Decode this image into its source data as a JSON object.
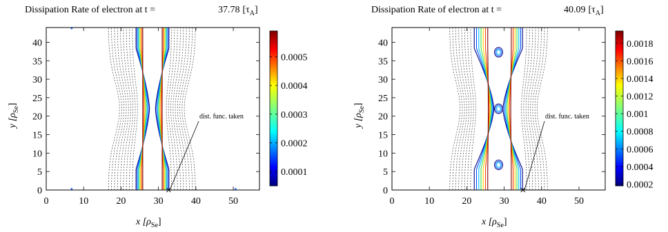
{
  "chart_data": [
    {
      "type": "heatmap",
      "title": "Dissipation Rate of electron at t =",
      "time": "37.78",
      "time_unit": "[τ",
      "time_unit_sub": "A",
      "xlabel": "x [ρ",
      "xlabel_sub": "Se",
      "ylabel": "y [ρ",
      "ylabel_sub": "Se",
      "xlim": [
        0,
        57
      ],
      "ylim": [
        0,
        44
      ],
      "xticks": [
        0,
        10,
        20,
        30,
        40,
        50
      ],
      "yticks": [
        0,
        5,
        10,
        15,
        20,
        25,
        30,
        35,
        40
      ],
      "annotation": "dist. func. taken",
      "marker": [
        32.7,
        0
      ],
      "x_point_y": 22,
      "colorbar": {
        "range": [
          5e-05,
          0.00059
        ],
        "ticks": [
          0.0001,
          0.0002,
          0.0003,
          0.0004,
          0.0005
        ],
        "labels": [
          "0.0001",
          "0.0002",
          "0.0003",
          "0.0004",
          "0.0005"
        ]
      },
      "contours": [
        {
          "color": "#000080",
          "mid": [
            24.0,
            32.8
          ],
          "w0": 0.8,
          "w1": 1.6
        },
        {
          "color": "#0050ff",
          "mid": [
            24.3,
            32.5
          ],
          "w0": 1.1,
          "w1": 1.9
        },
        {
          "color": "#00c0ff",
          "mid": [
            24.6,
            32.2
          ],
          "w0": 1.4,
          "w1": 2.2
        },
        {
          "color": "#40e040",
          "mid": [
            24.9,
            31.9
          ],
          "w0": 1.7,
          "w1": 2.5
        },
        {
          "color": "#ffd000",
          "mid": [
            25.2,
            31.6
          ],
          "w0": 2.0,
          "w1": 2.8
        },
        {
          "color": "#ff4000",
          "mid": [
            25.5,
            31.3
          ],
          "w0": 2.3,
          "w1": 3.1
        },
        {
          "color": "#800000",
          "mid": [
            25.8,
            31.0
          ],
          "w0": 2.6,
          "w1": 3.4
        }
      ],
      "islands": [],
      "dashed_lines": [
        {
          "left": 23.0,
          "right": 33.5,
          "pinch": 0.35
        },
        {
          "left": 22.2,
          "right": 34.3,
          "pinch": 0.4
        },
        {
          "left": 21.4,
          "right": 35.1,
          "pinch": 0.45
        },
        {
          "left": 20.6,
          "right": 35.9,
          "pinch": 0.5
        },
        {
          "left": 19.8,
          "right": 36.7,
          "pinch": 0.55
        },
        {
          "left": 19.0,
          "right": 37.5,
          "pinch": 0.6
        },
        {
          "left": 18.2,
          "right": 38.3,
          "pinch": 0.65
        },
        {
          "left": 17.4,
          "right": 39.1,
          "pinch": 0.7
        },
        {
          "left": 16.6,
          "right": 39.9,
          "pinch": 0.75
        }
      ],
      "specks": [
        [
          6.8,
          0.3
        ],
        [
          50.6,
          0.3
        ],
        [
          6.8,
          43.8
        ]
      ]
    },
    {
      "type": "heatmap",
      "title": "Dissipation Rate of electron at t =",
      "time": "40.09",
      "time_unit": "[τ",
      "time_unit_sub": "A",
      "xlabel": "x [ρ",
      "xlabel_sub": "Se",
      "ylabel": "y [ρ",
      "ylabel_sub": "Se",
      "xlim": [
        0,
        57
      ],
      "ylim": [
        0,
        44
      ],
      "xticks": [
        0,
        10,
        20,
        30,
        40,
        50
      ],
      "yticks": [
        0,
        5,
        10,
        15,
        20,
        25,
        30,
        35,
        40
      ],
      "annotation": "dist. func. taken",
      "marker": [
        35.0,
        0
      ],
      "x_point_y": 22,
      "colorbar": {
        "range": [
          0.00018,
          0.00194
        ],
        "ticks": [
          0.0002,
          0.0004,
          0.0006,
          0.0008,
          0.001,
          0.0012,
          0.0014,
          0.0016,
          0.0018
        ],
        "labels": [
          "0.0002",
          "0.0004",
          "0.0006",
          "0.0008",
          "0.001",
          "0.0012",
          "0.0014",
          "0.0016",
          "0.0018"
        ]
      },
      "contours": [
        {
          "color": "#000080",
          "mid": [
            22.0,
            34.9
          ],
          "w0": 1.2,
          "w1": 6.4
        },
        {
          "color": "#0050ff",
          "mid": [
            22.6,
            34.4
          ],
          "w0": 1.5,
          "w1": 5.8
        },
        {
          "color": "#00c0ff",
          "mid": [
            23.2,
            33.9
          ],
          "w0": 1.8,
          "w1": 5.2
        },
        {
          "color": "#40e040",
          "mid": [
            23.8,
            33.4
          ],
          "w0": 2.1,
          "w1": 4.7
        },
        {
          "color": "#ffd000",
          "mid": [
            24.4,
            32.9
          ],
          "w0": 2.4,
          "w1": 4.2
        },
        {
          "color": "#ff4000",
          "mid": [
            25.0,
            32.4
          ],
          "w0": 2.7,
          "w1": 3.8
        },
        {
          "color": "#800000",
          "mid": [
            25.6,
            31.9
          ],
          "w0": 3.0,
          "w1": 3.4
        }
      ],
      "islands": [
        [
          28.5,
          37.3
        ],
        [
          28.5,
          6.8
        ],
        [
          28.5,
          22.0
        ]
      ],
      "dashed_lines": [
        {
          "left": 21.0,
          "right": 36.0,
          "pinch": 0.35
        },
        {
          "left": 20.2,
          "right": 36.8,
          "pinch": 0.4
        },
        {
          "left": 19.4,
          "right": 37.6,
          "pinch": 0.45
        },
        {
          "left": 18.6,
          "right": 38.4,
          "pinch": 0.5
        },
        {
          "left": 17.8,
          "right": 39.2,
          "pinch": 0.55
        },
        {
          "left": 17.0,
          "right": 40.0,
          "pinch": 0.6
        },
        {
          "left": 16.2,
          "right": 40.8,
          "pinch": 0.65
        },
        {
          "left": 15.4,
          "right": 41.6,
          "pinch": 0.7
        }
      ],
      "specks": []
    }
  ]
}
